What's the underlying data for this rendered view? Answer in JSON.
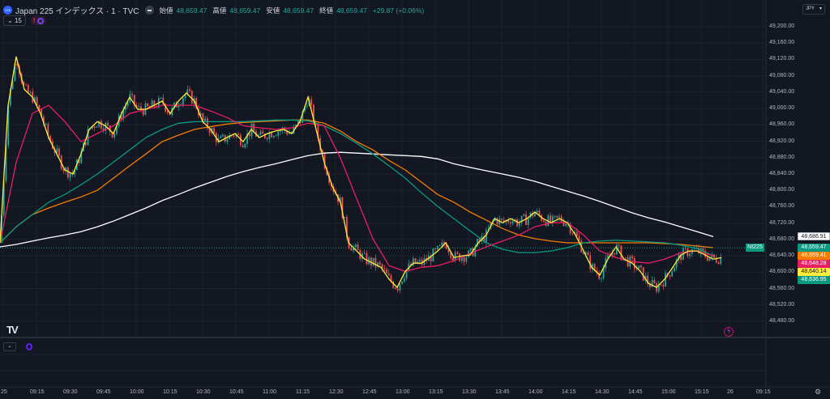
{
  "header": {
    "logo_text": "225",
    "symbol": "Japan 225 インデックス · 1 · TVC",
    "open_label": "始値",
    "open": "48,659.47",
    "high_label": "高値",
    "high": "48,659.47",
    "low_label": "安値",
    "low": "48,659.47",
    "close_label": "終値",
    "close": "48,659.47",
    "change": "+29.87 (+0.06%)",
    "interval": "15",
    "alert_icon": "!"
  },
  "currency": {
    "value": "JPY",
    "chevron": "▾"
  },
  "price_axis": [
    "49,200.00",
    "49,160.00",
    "49,120.00",
    "49,080.00",
    "49,040.00",
    "49,000.00",
    "48,960.00",
    "48,920.00",
    "48,880.00",
    "48,840.00",
    "48,800.00",
    "48,760.00",
    "48,720.00",
    "48,680.00",
    "48,640.00",
    "48,600.00",
    "48,560.00",
    "48,520.00",
    "48,480.00"
  ],
  "time_axis": [
    "25",
    "09:15",
    "09:30",
    "09:45",
    "10:00",
    "10:15",
    "10:30",
    "10:45",
    "11:00",
    "11:15",
    "12:30",
    "12:45",
    "13:00",
    "13:15",
    "13:30",
    "13:45",
    "14:00",
    "14:15",
    "14:30",
    "14:45",
    "15:00",
    "15:15",
    "26",
    "09:15"
  ],
  "badges": {
    "symbol_tag": "NI225",
    "items": [
      {
        "value": "48,686.91",
        "color": "#ffffff",
        "text": "#131722",
        "price": 48686.91
      },
      {
        "value": "48,659.47",
        "color": "#089981",
        "text": "#ffffff",
        "price": 48659.47
      },
      {
        "value": "48,659.41",
        "color": "#f57c00",
        "text": "#ffffff",
        "price": 48659.41
      },
      {
        "value": "48,648.28",
        "color": "#e91e63",
        "text": "#ffffff",
        "price": 48648.28
      },
      {
        "value": "48,640.14",
        "color": "#ffeb3b",
        "text": "#131722",
        "price": 48640.14
      },
      {
        "value": "48,636.95",
        "color": "#089981",
        "text": "#ffffff",
        "price": 48636.95
      }
    ]
  },
  "lower_pane": {
    "chevron": "⌄"
  },
  "tv_logo": "TV",
  "chart_data": {
    "type": "line",
    "ylim": [
      48440,
      49230
    ],
    "last_price": 48659.47,
    "colors": {
      "up": "#26a69a",
      "down": "#ef5350",
      "grid": "#1e222d"
    },
    "series": [
      {
        "name": "ma-yellow",
        "color": "#ffeb3b",
        "step": 10,
        "values": [
          48672,
          49008,
          49127,
          49047,
          49028,
          48988,
          48929,
          48889,
          48850,
          48840,
          48889,
          48949,
          48968,
          48958,
          48939,
          48988,
          49028,
          48998,
          48998,
          49008,
          49018,
          48988,
          49018,
          49038,
          49018,
          48968,
          48949,
          48919,
          48929,
          48939,
          48919,
          48949,
          48929,
          48939,
          48945,
          48949,
          48939,
          48968,
          49028,
          48949,
          48869,
          48810,
          48771,
          48672,
          48652,
          48632,
          48622,
          48612,
          48583,
          48563,
          48602,
          48622,
          48622,
          48636,
          48652,
          48672,
          48636,
          48640,
          48642,
          48672,
          48691,
          48731,
          48721,
          48731,
          48721,
          48731,
          48747,
          48731,
          48721,
          48731,
          48721,
          48691,
          48652,
          48612,
          48593,
          48632,
          48662,
          48632,
          48622,
          48602,
          48573,
          48563,
          48583,
          48612,
          48642,
          48652,
          48652,
          48642,
          48632,
          48636
        ]
      },
      {
        "name": "ma-pink",
        "color": "#e91e63",
        "step": 20,
        "values": [
          48672,
          48869,
          48988,
          49008,
          48968,
          48919,
          48939,
          48958,
          48988,
          48998,
          49008,
          49008,
          49008,
          48994,
          48978,
          48958,
          48953,
          48949,
          48953,
          48964,
          48958,
          48879,
          48780,
          48682,
          48616,
          48602,
          48612,
          48616,
          48628,
          48646,
          48662,
          48676,
          48691,
          48711,
          48721,
          48721,
          48691,
          48652,
          48636,
          48626,
          48622,
          48632,
          48648,
          48652,
          48640
        ]
      },
      {
        "name": "ma-teal",
        "color": "#089981",
        "step": 20,
        "values": [
          48672,
          48711,
          48741,
          48771,
          48790,
          48814,
          48840,
          48869,
          48899,
          48929,
          48949,
          48964,
          48968,
          48968,
          48968,
          48968,
          48970,
          48972,
          48972,
          48970,
          48958,
          48939,
          48915,
          48889,
          48860,
          48830,
          48794,
          48761,
          48731,
          48701,
          48672,
          48656,
          48648,
          48648,
          48652,
          48660,
          48672,
          48676,
          48678,
          48676,
          48674,
          48672,
          48666,
          48658,
          48640
        ]
      },
      {
        "name": "ma-orange",
        "color": "#f57c00",
        "step": 20,
        "values": [
          48672,
          48711,
          48741,
          48757,
          48771,
          48784,
          48800,
          48830,
          48860,
          48889,
          48919,
          48935,
          48949,
          48956,
          48962,
          48966,
          48968,
          48970,
          48972,
          48972,
          48964,
          48945,
          48919,
          48899,
          48873,
          48850,
          48820,
          48790,
          48771,
          48747,
          48727,
          48707,
          48691,
          48682,
          48676,
          48672,
          48672,
          48672,
          48672,
          48672,
          48672,
          48670,
          48668,
          48664,
          48660
        ]
      },
      {
        "name": "ma-white",
        "color": "#ffffff",
        "step": 20,
        "values": [
          48662,
          48668,
          48676,
          48684,
          48691,
          48699,
          48711,
          48725,
          48741,
          48757,
          48775,
          48790,
          48806,
          48820,
          48834,
          48846,
          48856,
          48865,
          48875,
          48885,
          48891,
          48893,
          48891,
          48889,
          48887,
          48885,
          48883,
          48877,
          48865,
          48856,
          48848,
          48840,
          48832,
          48822,
          48810,
          48798,
          48786,
          48773,
          48759,
          48745,
          48733,
          48723,
          48711,
          48699,
          48687
        ]
      }
    ]
  }
}
